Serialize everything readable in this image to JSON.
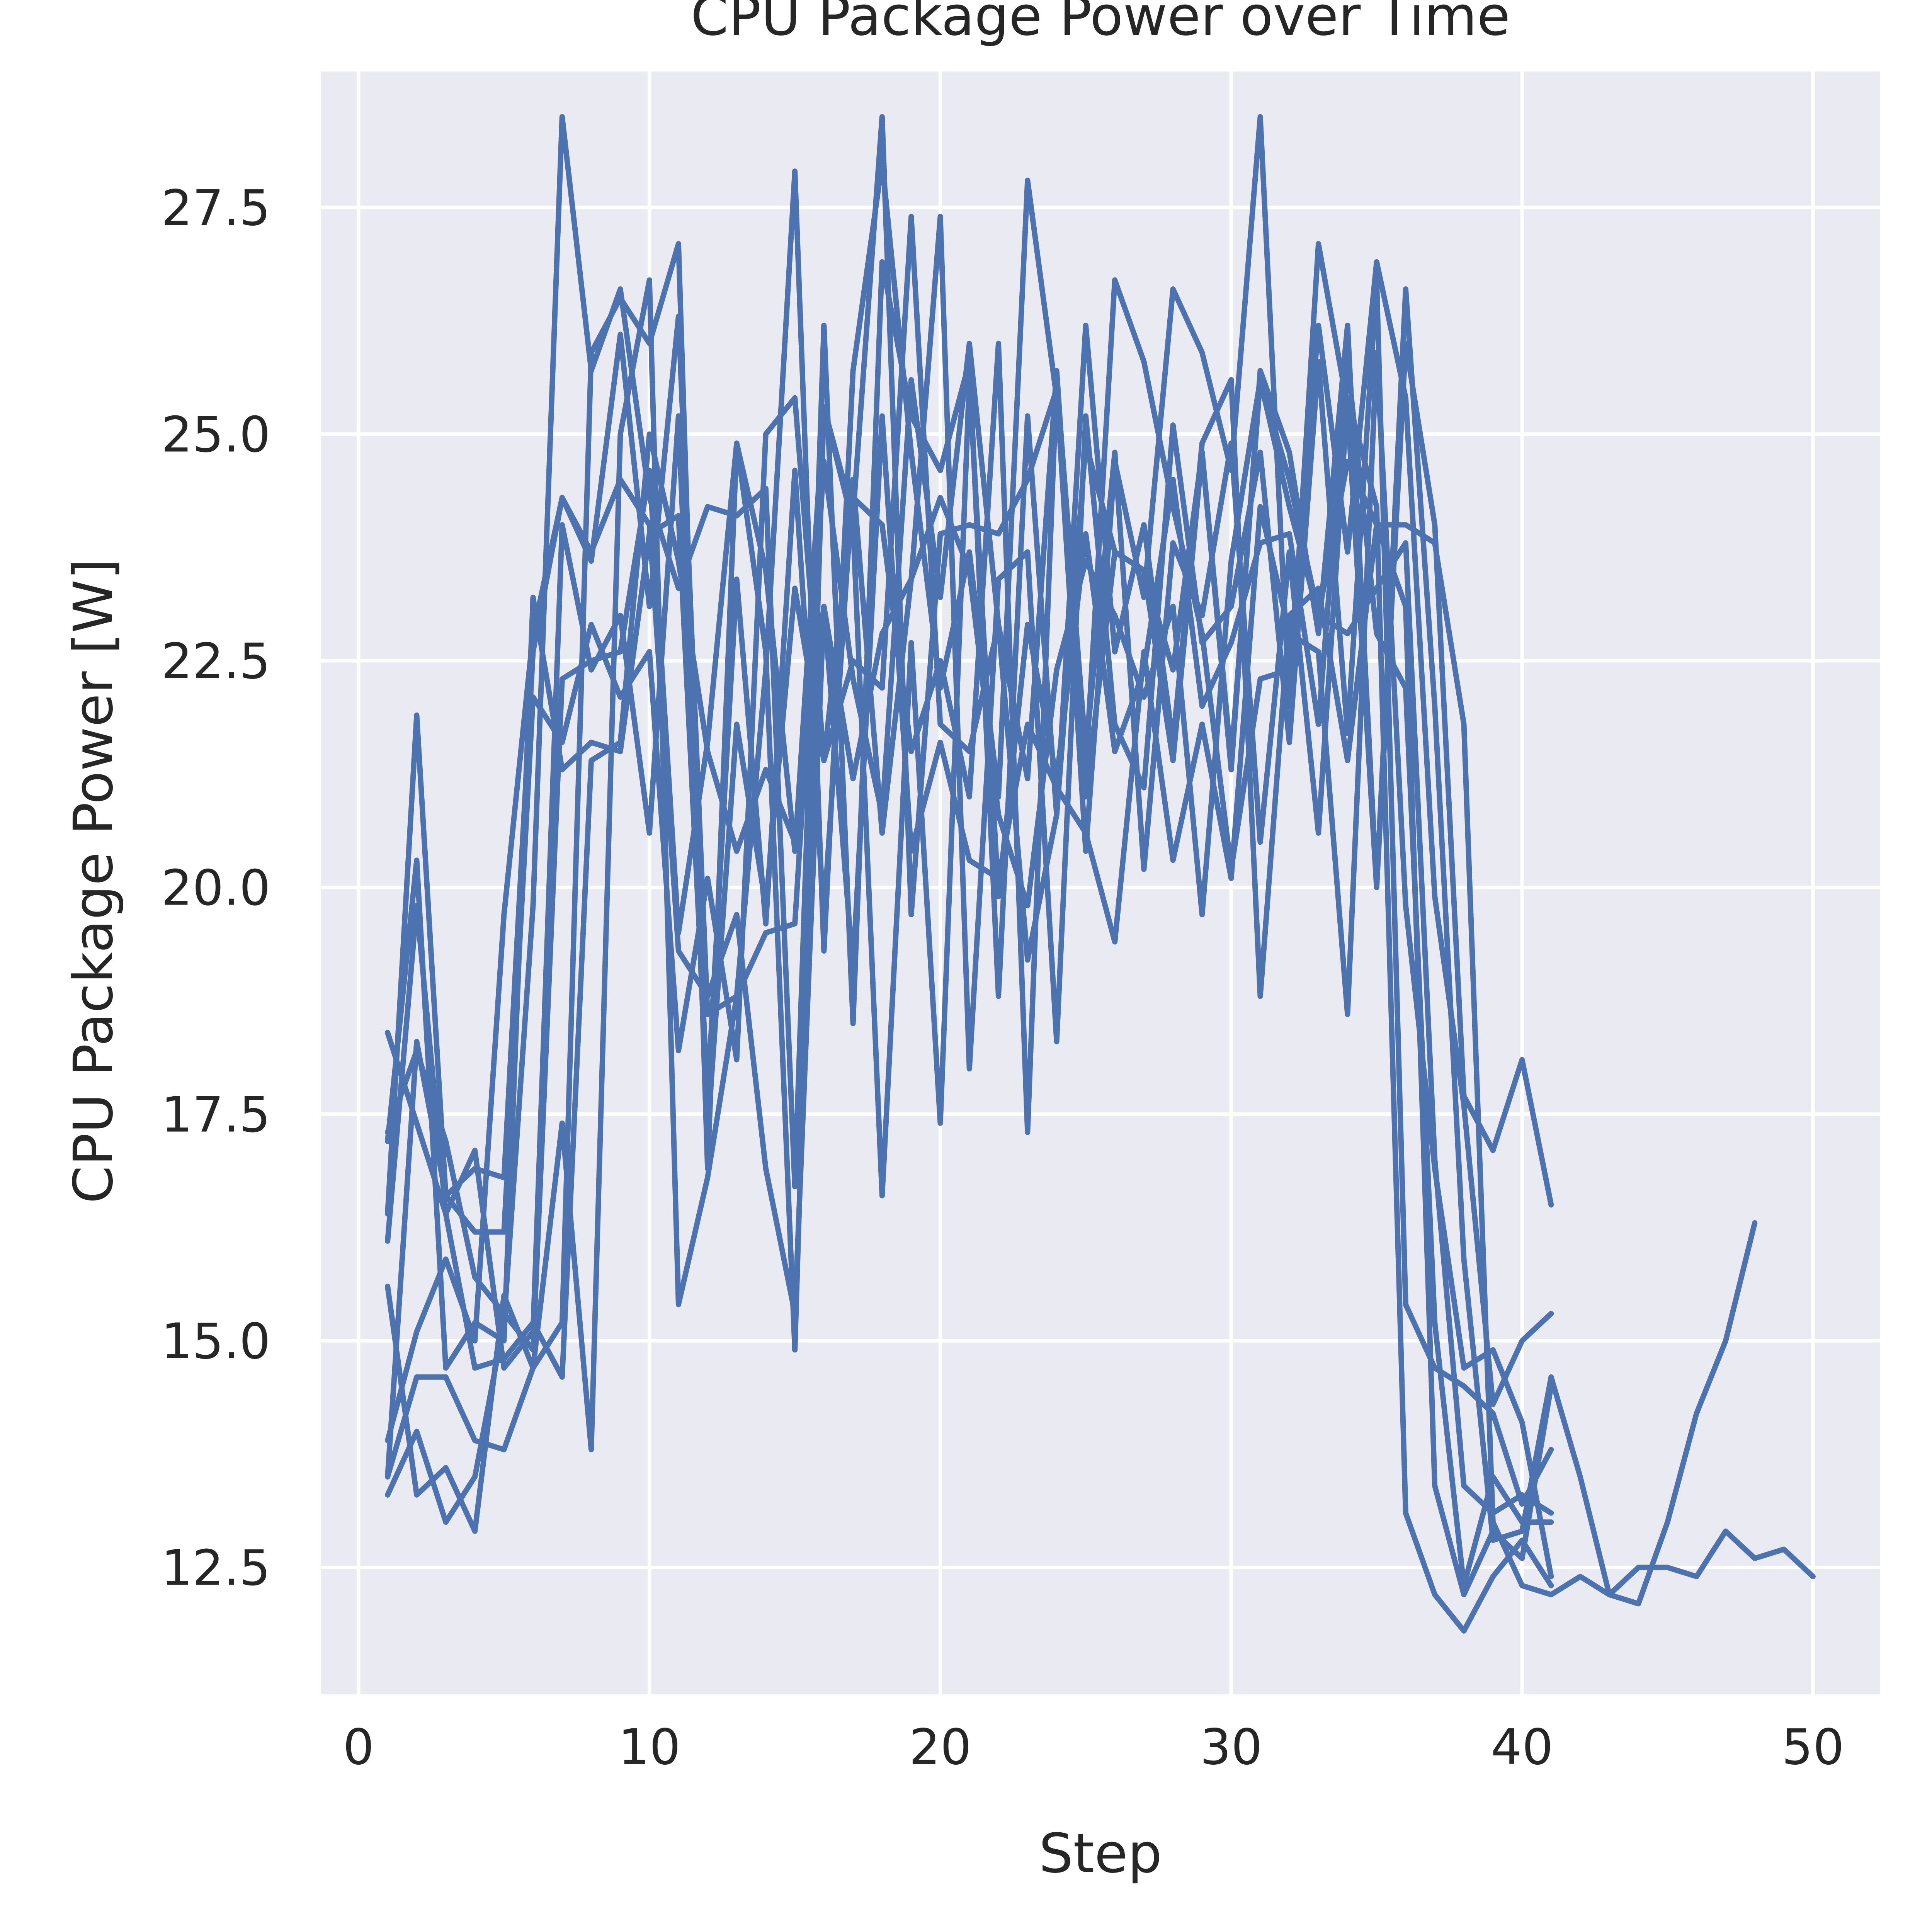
{
  "chart_data": {
    "type": "line",
    "title": "CPU Package Power over Time",
    "xlabel": "Step",
    "ylabel": "CPU Package Power [W]",
    "xlim": [
      -1.3,
      52.3
    ],
    "ylim": [
      11.1,
      29.0
    ],
    "xticks": [
      0,
      10,
      20,
      30,
      40,
      50
    ],
    "xtick_labels": [
      "0",
      "10",
      "20",
      "30",
      "40",
      "50"
    ],
    "yticks": [
      12.5,
      15.0,
      17.5,
      20.0,
      22.5,
      25.0,
      27.5
    ],
    "ytick_labels": [
      "12.5",
      "15.0",
      "17.5",
      "20.0",
      "22.5",
      "25.0",
      "27.5"
    ],
    "grid": true,
    "legend": false,
    "colors": {
      "series": "#4c72b0",
      "plot_background": "#eaeaf2",
      "grid": "#ffffff",
      "text": "#262626"
    },
    "series": [
      {
        "x": [
          1,
          2,
          3,
          4,
          5,
          6,
          7,
          8,
          9,
          10,
          11,
          12,
          13,
          14,
          15,
          16,
          17,
          18,
          19,
          20,
          21,
          22,
          23,
          24,
          25,
          26,
          27,
          28,
          29,
          30,
          31,
          32,
          33,
          34,
          35,
          36,
          37,
          38,
          39,
          40,
          41,
          42,
          43,
          44,
          45,
          46,
          47,
          48,
          49,
          50
        ],
        "y": [
          16.4,
          21.9,
          16.6,
          16.2,
          16.2,
          22.1,
          21.6,
          22.9,
          22.1,
          22.6,
          18.2,
          20.1,
          18.1,
          25.0,
          25.4,
          21.4,
          22.5,
          22.2,
          27.4,
          21.8,
          21.5,
          22.9,
          21.2,
          25.7,
          21.0,
          23.7,
          23.5,
          21.4,
          24.8,
          21.4,
          25.6,
          24.5,
          23.0,
          24.7,
          24.0,
          24.0,
          23.8,
          21.8,
          13.0,
          12.3,
          12.2,
          12.4,
          12.2,
          12.5,
          12.5,
          12.4,
          12.9,
          12.6,
          12.7,
          12.4
        ]
      },
      {
        "x": [
          1,
          2,
          3,
          4,
          5,
          6,
          7,
          8,
          9,
          10,
          11,
          12,
          13,
          14,
          15,
          16,
          17,
          18,
          19,
          20,
          21,
          22,
          23,
          24,
          25,
          26,
          27,
          28,
          29,
          30,
          31,
          32,
          33,
          34,
          35,
          36,
          37,
          38,
          39,
          40,
          41,
          42,
          43,
          44,
          45,
          46,
          47,
          48
        ],
        "y": [
          13.9,
          15.1,
          15.9,
          15.0,
          19.7,
          22.8,
          24.3,
          23.6,
          26.1,
          23.1,
          26.3,
          18.6,
          18.8,
          19.5,
          19.6,
          24.7,
          22.3,
          20.8,
          25.6,
          23.2,
          26.0,
          22.9,
          19.2,
          20.8,
          24.9,
          23.7,
          23.5,
          22.4,
          24.8,
          21.3,
          25.7,
          24.8,
          22.8,
          26.2,
          20.0,
          26.6,
          22.0,
          15.9,
          12.8,
          12.9,
          14.6,
          13.5,
          12.2,
          12.1,
          13.0,
          14.2,
          15.0,
          16.3
        ]
      },
      {
        "x": [
          1,
          2,
          3,
          4,
          5,
          6,
          7,
          8,
          9,
          10,
          11,
          12,
          13,
          14,
          15,
          16,
          17,
          18,
          19,
          20,
          21,
          22,
          23,
          24,
          25,
          26,
          27,
          28,
          29,
          30,
          31,
          32,
          33,
          34,
          35,
          36,
          37,
          38,
          39,
          40,
          41
        ],
        "y": [
          13.5,
          14.6,
          14.6,
          13.9,
          13.8,
          14.7,
          15.2,
          25.9,
          26.5,
          26.0,
          27.1,
          16.9,
          24.9,
          23.5,
          20.4,
          25.3,
          24.1,
          28.5,
          19.7,
          23.9,
          24.0,
          23.9,
          24.5,
          25.5,
          20.4,
          24.7,
          23.2,
          26.6,
          25.9,
          24.6,
          28.5,
          22.0,
          27.1,
          25.3,
          20.0,
          26.0,
          24.0,
          17.7,
          17.1,
          18.1,
          16.5
        ]
      },
      {
        "x": [
          1,
          2,
          3,
          4,
          5,
          6,
          7,
          8,
          9,
          10,
          11,
          12,
          13,
          14,
          15,
          16,
          17,
          18,
          19,
          20,
          21,
          22,
          23,
          24,
          25,
          26,
          27,
          28,
          29,
          30,
          31,
          32,
          33,
          34,
          35,
          36,
          37,
          38,
          39,
          40,
          41
        ],
        "y": [
          15.6,
          13.3,
          13.6,
          12.9,
          15.5,
          14.7,
          17.4,
          13.8,
          25.0,
          26.7,
          15.4,
          16.8,
          18.8,
          22.4,
          27.9,
          19.3,
          25.7,
          28.0,
          24.8,
          22.2,
          23.7,
          21.0,
          27.8,
          25.4,
          21.3,
          26.7,
          25.8,
          24.2,
          22.8,
          20.2,
          22.3,
          22.4,
          26.2,
          23.7,
          26.9,
          25.4,
          19.9,
          17.6,
          14.3,
          15.0,
          15.3
        ]
      },
      {
        "x": [
          1,
          2,
          3,
          4,
          5,
          6,
          7,
          8,
          9,
          10,
          11,
          12,
          13,
          14,
          15,
          16,
          17,
          18,
          19,
          20,
          21,
          22,
          23,
          24,
          25,
          26,
          27,
          28,
          29,
          30,
          31,
          32,
          33,
          34,
          35,
          36,
          37,
          38,
          39,
          40,
          41
        ],
        "y": [
          13.3,
          14.0,
          13.0,
          13.5,
          15.2,
          19.8,
          28.5,
          25.7,
          26.6,
          24.3,
          23.3,
          24.2,
          24.1,
          24.4,
          16.7,
          26.2,
          18.5,
          26.9,
          25.2,
          24.6,
          25.8,
          18.8,
          25.2,
          20.8,
          26.2,
          22.6,
          24.0,
          21.6,
          24.9,
          25.6,
          18.8,
          23.0,
          23.3,
          21.4,
          24.0,
          23.1,
          13.4,
          12.2,
          12.9,
          12.6,
          14.5
        ]
      },
      {
        "x": [
          1,
          2,
          3,
          4,
          5,
          6,
          7,
          8,
          9,
          10,
          11,
          12,
          13,
          14,
          15,
          16,
          17,
          18,
          19,
          20,
          21,
          22,
          23,
          24,
          25,
          26,
          27,
          28,
          29,
          30,
          31,
          32,
          33,
          34,
          35,
          36,
          37,
          38,
          39,
          40,
          41
        ],
        "y": [
          18.4,
          17.4,
          16.4,
          17.1,
          14.7,
          15.1,
          24.0,
          22.4,
          23.0,
          20.6,
          25.2,
          17.3,
          21.8,
          19.8,
          23.3,
          21.4,
          24.3,
          24.0,
          21.5,
          22.5,
          21.0,
          26.0,
          17.3,
          25.6,
          21.5,
          24.8,
          20.2,
          23.8,
          23.0,
          24.9,
          20.5,
          23.7,
          20.6,
          25.4,
          24.2,
          13.1,
          12.2,
          11.8,
          12.4,
          12.8,
          12.3
        ]
      },
      {
        "x": [
          1,
          2,
          3,
          4,
          5,
          6,
          7,
          8,
          9,
          10,
          11,
          12,
          13,
          14,
          15,
          16,
          17,
          18,
          19,
          20,
          21,
          22,
          23,
          24,
          25,
          26,
          27,
          28,
          29,
          30,
          31,
          32,
          33,
          34,
          35,
          36,
          37,
          38,
          39,
          40,
          41
        ],
        "y": [
          17.2,
          20.3,
          14.7,
          15.2,
          15.0,
          23.2,
          21.3,
          21.6,
          21.5,
          23.9,
          24.1,
          17.7,
          23.4,
          19.6,
          24.6,
          19.7,
          24.5,
          20.6,
          23.4,
          27.4,
          18.0,
          23.4,
          23.7,
          18.3,
          25.2,
          21.8,
          21.1,
          25.1,
          22.7,
          23.1,
          24.8,
          21.6,
          25.8,
          21.7,
          26.7,
          15.4,
          14.7,
          14.5,
          14.2,
          13.2,
          13.8
        ]
      },
      {
        "x": [
          1,
          2,
          3,
          4,
          5,
          6,
          7,
          8,
          9,
          10,
          11,
          12,
          13,
          14,
          15,
          16,
          17,
          18,
          19,
          20,
          21,
          22,
          23,
          24,
          25,
          26,
          27,
          28,
          29,
          30,
          31,
          32,
          33,
          34,
          35,
          36,
          37,
          38,
          39,
          40,
          41
        ],
        "y": [
          16.1,
          19.8,
          16.4,
          14.7,
          14.8,
          15.2,
          14.6,
          21.4,
          21.6,
          25.0,
          23.6,
          21.5,
          20.4,
          21.3,
          20.5,
          23.1,
          19.1,
          25.2,
          20.4,
          21.6,
          20.3,
          20.1,
          21.8,
          21.1,
          20.6,
          19.4,
          22.6,
          20.3,
          21.8,
          20.1,
          24.2,
          22.8,
          22.6,
          18.6,
          25.9,
          19.8,
          16.9,
          14.7,
          14.9,
          14.1,
          12.4
        ]
      },
      {
        "x": [
          1,
          2,
          3,
          4,
          5,
          6,
          7,
          8,
          9,
          10,
          11,
          12,
          13,
          14,
          15,
          16,
          17,
          18,
          19,
          20,
          21,
          22,
          23,
          24,
          25,
          26,
          27,
          28,
          29,
          30,
          31,
          32,
          33,
          34,
          35,
          36,
          37,
          38,
          39,
          40,
          41
        ],
        "y": [
          13.5,
          18.3,
          16.6,
          16.9,
          16.8,
          22.6,
          24.3,
          23.7,
          24.5,
          24.0,
          19.3,
          18.8,
          19.7,
          16.9,
          15.3,
          23.1,
          21.2,
          22.8,
          23.4,
          24.3,
          23.5,
          20.8,
          19.8,
          22.4,
          23.6,
          23.0,
          22.1,
          23.1,
          19.7,
          23.6,
          25.6,
          24.2,
          23.0,
          22.8,
          23.3,
          23.8,
          17.0,
          13.4,
          13.1,
          13.3,
          13.1
        ]
      },
      {
        "x": [
          1,
          2,
          3,
          4,
          5,
          6,
          7,
          8,
          9,
          10,
          11,
          12,
          13,
          14,
          15,
          16,
          17,
          18,
          19,
          20,
          21,
          22,
          23,
          24,
          25,
          26,
          27,
          28,
          29,
          30,
          31,
          32,
          33,
          34,
          35,
          36,
          37,
          38,
          39,
          40,
          41
        ],
        "y": [
          17.3,
          18.2,
          17.2,
          15.7,
          15.3,
          14.9,
          22.3,
          22.5,
          22.6,
          24.6,
          19.5,
          21.6,
          24.9,
          22.6,
          14.9,
          25.3,
          24.0,
          16.6,
          22.7,
          17.4,
          25.6,
          19.9,
          22.9,
          21.2,
          23.9,
          21.5,
          22.4,
          24.5,
          22.0,
          22.7,
          23.8,
          23.9,
          21.8,
          25.8,
          22.8,
          22.2,
          15.2,
          12.3,
          13.5,
          13.0,
          13.0
        ]
      }
    ]
  }
}
